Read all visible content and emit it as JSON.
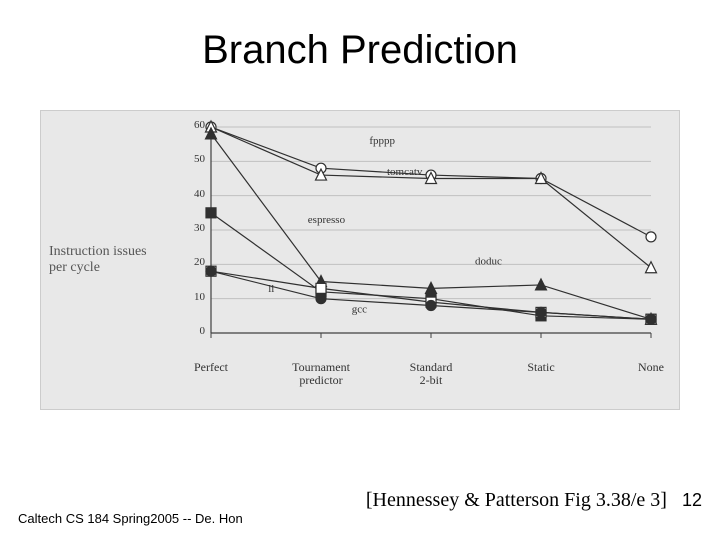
{
  "title": "Branch Prediction",
  "footer_left": "Caltech CS 184 Spring2005 -- De. Hon",
  "citation": "[Hennessey & Patterson Fig 3.38/e 3]",
  "page_number": "12",
  "chart": {
    "type": "line",
    "background_color": "#e8e8e8",
    "grid_color": "#c0c0c0",
    "axis_color": "#404040",
    "ylabel": "Instruction issues per cycle",
    "ylabel_fontsize": 14,
    "ylim": [
      0,
      60
    ],
    "ytick_step": 10,
    "yticks": [
      0,
      10,
      20,
      30,
      40,
      50,
      60
    ],
    "categories": [
      "Perfect",
      "Tournament predictor",
      "Standard 2-bit",
      "Static",
      "None"
    ],
    "x_positions": [
      0,
      0.25,
      0.5,
      0.75,
      1.0
    ],
    "series": [
      {
        "name": "fpppp",
        "label": "fpppp",
        "label_pos": [
          0.36,
          55
        ],
        "marker": "circle",
        "color": "#303030",
        "fill": "#ffffff",
        "values": [
          60,
          48,
          46,
          45,
          28
        ]
      },
      {
        "name": "tomcatv",
        "label": "tomcatv",
        "label_pos": [
          0.4,
          46
        ],
        "marker": "triangle",
        "color": "#303030",
        "fill": "#ffffff",
        "values": [
          60,
          46,
          45,
          45,
          19
        ]
      },
      {
        "name": "doduc",
        "label": "doduc",
        "label_pos": [
          0.6,
          20
        ],
        "marker": "triangle",
        "color": "#303030",
        "fill": "#303030",
        "values": [
          58,
          15,
          13,
          14,
          4
        ]
      },
      {
        "name": "espresso",
        "label": "espresso",
        "label_pos": [
          0.22,
          32
        ],
        "marker": "square",
        "color": "#303030",
        "fill": "#303030",
        "values": [
          35,
          12,
          10,
          5,
          4
        ]
      },
      {
        "name": "li",
        "label": "li",
        "label_pos": [
          0.13,
          12
        ],
        "marker": "square",
        "color": "#303030",
        "fill": "#ffffff",
        "values": [
          18,
          13,
          9,
          6,
          4
        ]
      },
      {
        "name": "gcc",
        "label": "gcc",
        "label_pos": [
          0.32,
          6
        ],
        "marker": "circle",
        "color": "#303030",
        "fill": "#303030",
        "values": [
          18,
          10,
          8,
          6,
          4
        ]
      }
    ],
    "line_width": 1.2,
    "marker_size": 5,
    "tick_fontsize": 12,
    "label_fontsize": 11
  }
}
